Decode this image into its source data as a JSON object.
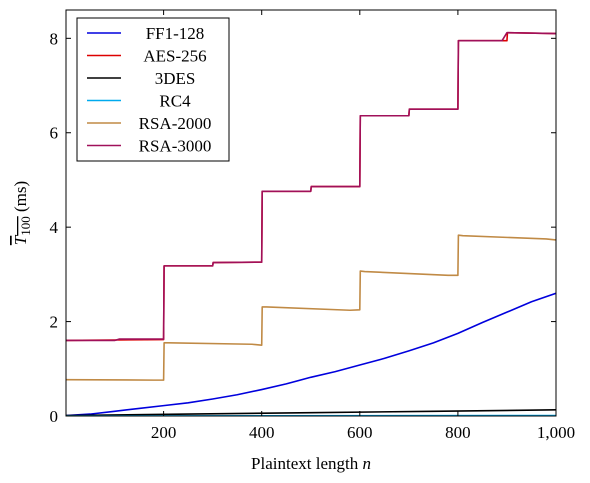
{
  "chart_data": {
    "type": "line",
    "title": "",
    "xlabel": "Plaintext length n",
    "xlabel_parts": {
      "text": "Plaintext length ",
      "var": "n"
    },
    "ylabel": "T_100 (ms)",
    "ylabel_parts": {
      "symbol": "T",
      "subscript": "100",
      "unit": "(ms)",
      "overline": true
    },
    "xlim": [
      1,
      1000
    ],
    "ylim": [
      0,
      8.6
    ],
    "xticks": [
      200,
      400,
      600,
      800,
      1000
    ],
    "xtick_labels": [
      "200",
      "400",
      "600",
      "800",
      "1,000"
    ],
    "yticks": [
      0,
      2,
      4,
      6,
      8
    ],
    "ytick_labels": [
      "0",
      "2",
      "4",
      "6",
      "8"
    ],
    "grid": false,
    "legend_position": "top-left",
    "series": [
      {
        "name": "FF1-128",
        "color": "#0000dd",
        "x": [
          1,
          50,
          100,
          150,
          200,
          250,
          300,
          350,
          400,
          450,
          500,
          550,
          600,
          650,
          700,
          750,
          800,
          850,
          900,
          950,
          1000
        ],
        "y": [
          0.01,
          0.04,
          0.1,
          0.16,
          0.22,
          0.28,
          0.36,
          0.45,
          0.56,
          0.68,
          0.82,
          0.94,
          1.08,
          1.22,
          1.38,
          1.55,
          1.75,
          1.98,
          2.2,
          2.42,
          2.6
        ]
      },
      {
        "name": "AES-256",
        "color": "#dd0000",
        "x": [
          1,
          200,
          201,
          300,
          301,
          400,
          401,
          500,
          501,
          600,
          601,
          700,
          701,
          800,
          801,
          900,
          901,
          1000
        ],
        "y": [
          1.6,
          1.62,
          3.18,
          3.18,
          3.25,
          3.26,
          4.76,
          4.76,
          4.86,
          4.86,
          6.36,
          6.36,
          6.5,
          6.5,
          7.95,
          7.95,
          8.12,
          8.1
        ]
      },
      {
        "name": "3DES",
        "color": "#000000",
        "x": [
          1,
          250,
          500,
          750,
          1000
        ],
        "y": [
          0.01,
          0.04,
          0.07,
          0.1,
          0.13
        ]
      },
      {
        "name": "RC4",
        "color": "#00aaee",
        "x": [
          1,
          1000
        ],
        "y": [
          0.0,
          0.01
        ]
      },
      {
        "name": "RSA-2000",
        "color": "#c08a45",
        "x": [
          1,
          180,
          200,
          201,
          210,
          380,
          400,
          401,
          410,
          580,
          600,
          601,
          610,
          780,
          800,
          801,
          810,
          980,
          1000
        ],
        "y": [
          0.77,
          0.76,
          0.76,
          1.55,
          1.55,
          1.52,
          1.5,
          2.31,
          2.31,
          2.24,
          2.25,
          3.07,
          3.06,
          2.98,
          2.98,
          3.83,
          3.82,
          3.75,
          3.73
        ]
      },
      {
        "name": "RSA-3000",
        "color": "#a0105a",
        "x": [
          1,
          100,
          110,
          200,
          201,
          300,
          301,
          400,
          401,
          500,
          501,
          600,
          601,
          700,
          701,
          800,
          801,
          890,
          900,
          1000
        ],
        "y": [
          1.6,
          1.6,
          1.63,
          1.63,
          3.18,
          3.18,
          3.25,
          3.26,
          4.76,
          4.76,
          4.86,
          4.86,
          6.36,
          6.36,
          6.5,
          6.5,
          7.95,
          7.95,
          8.12,
          8.1
        ]
      }
    ]
  }
}
